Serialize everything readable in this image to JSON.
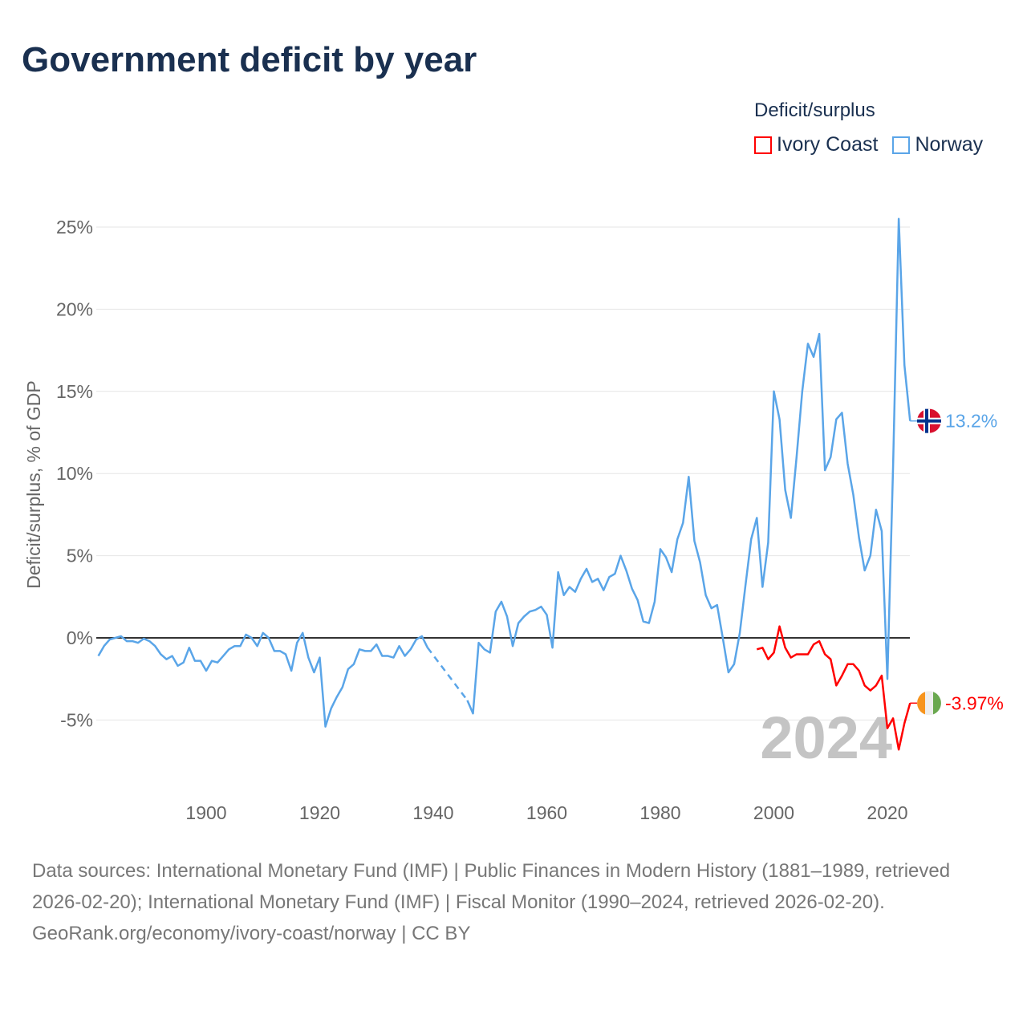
{
  "title": "Government deficit by year",
  "legend": {
    "title": "Deficit/surplus",
    "items": [
      {
        "label": "Ivory Coast",
        "color": "#ff0000"
      },
      {
        "label": "Norway",
        "color": "#5aa5e8"
      }
    ]
  },
  "year_watermark": "2024",
  "sources": {
    "line1": "Data sources: International Monetary Fund (IMF) | Public Finances in Modern History (1881–1989, retrieved 2026-02-20); International Monetary Fund (IMF) | Fiscal Monitor (1990–2024, retrieved 2026-02-20).",
    "line2": "GeoRank.org/economy/ivory-coast/norway | CC BY"
  },
  "chart_data": {
    "type": "line",
    "title": "Government deficit by year",
    "ylabel": "Deficit/surplus, % of GDP",
    "xlabel": "",
    "ylim": [
      -7.5,
      26
    ],
    "xlim": [
      1881,
      2024
    ],
    "yticks": [
      {
        "v": 25,
        "label": "25%"
      },
      {
        "v": 20,
        "label": "20%"
      },
      {
        "v": 15,
        "label": "15%"
      },
      {
        "v": 10,
        "label": "10%"
      },
      {
        "v": 5,
        "label": "5%"
      },
      {
        "v": 0,
        "label": "0%"
      },
      {
        "v": -5,
        "label": "-5%"
      }
    ],
    "xticks": [
      {
        "v": 1900,
        "label": "1900"
      },
      {
        "v": 1920,
        "label": "1920"
      },
      {
        "v": 1940,
        "label": "1940"
      },
      {
        "v": 1960,
        "label": "1960"
      },
      {
        "v": 1980,
        "label": "1980"
      },
      {
        "v": 2000,
        "label": "2000"
      },
      {
        "v": 2020,
        "label": "2020"
      }
    ],
    "series": [
      {
        "name": "Norway",
        "color": "#5aa5e8",
        "end_label": "13.2%",
        "start_year": 1881,
        "values": [
          -1.1,
          -0.5,
          -0.1,
          0.0,
          0.1,
          -0.2,
          -0.2,
          -0.3,
          -0.05,
          -0.2,
          -0.5,
          -1.0,
          -1.3,
          -1.1,
          -1.7,
          -1.5,
          -0.6,
          -1.4,
          -1.4,
          -2.0,
          -1.4,
          -1.5,
          -1.1,
          -0.7,
          -0.5,
          -0.5,
          0.2,
          0.0,
          -0.5,
          0.3,
          0.0,
          -0.8,
          -0.8,
          -1.0,
          -2.0,
          -0.3,
          0.3,
          -1.2,
          -2.1,
          -1.2,
          -5.4,
          -4.3,
          -3.6,
          -3.0,
          -1.9,
          -1.6,
          -0.7,
          -0.8,
          -0.8,
          -0.4,
          -1.1,
          -1.1,
          -1.2,
          -0.5,
          -1.1,
          -0.7,
          -0.1,
          0.1,
          -0.6,
          null,
          null,
          null,
          null,
          null,
          null,
          -3.8,
          -4.6,
          -0.3,
          -0.7,
          -0.9,
          1.6,
          2.2,
          1.3,
          -0.5,
          0.9,
          1.3,
          1.6,
          1.7,
          1.9,
          1.4,
          -0.6,
          4.0,
          2.6,
          3.1,
          2.8,
          3.6,
          4.2,
          3.4,
          3.6,
          2.9,
          3.7,
          3.9,
          5.0,
          4.1,
          3.0,
          2.3,
          1.0,
          0.9,
          2.2,
          5.4,
          4.9,
          4.0,
          6.0,
          7.0,
          9.8,
          5.9,
          4.6,
          2.6,
          1.8,
          2.0,
          0.0,
          -2.1,
          -1.6,
          0.3,
          3.2,
          6.0,
          7.3,
          3.1,
          5.8,
          15.0,
          13.3,
          9.0,
          7.3,
          11.0,
          15.0,
          17.9,
          17.1,
          18.5,
          10.2,
          11.0,
          13.3,
          13.7,
          10.6,
          8.7,
          6.1,
          4.1,
          5.0,
          7.8,
          6.5,
          -2.5,
          10.4,
          25.5,
          16.6,
          13.2
        ]
      },
      {
        "name": "Ivory Coast",
        "color": "#ff0000",
        "end_label": "-3.97%",
        "start_year": 1997,
        "values": [
          -0.7,
          -0.6,
          -1.3,
          -0.9,
          0.7,
          -0.6,
          -1.2,
          -1.0,
          -1.0,
          -1.0,
          -0.4,
          -0.2,
          -1.0,
          -1.3,
          -2.9,
          -2.3,
          -1.6,
          -1.6,
          -2.0,
          -2.9,
          -3.2,
          -2.9,
          -2.3,
          -5.5,
          -4.9,
          -6.8,
          -5.2,
          -3.97
        ]
      }
    ]
  }
}
